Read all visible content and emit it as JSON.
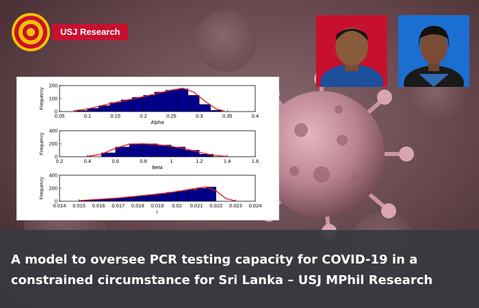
{
  "brand": {
    "badge_label": "USJ Research"
  },
  "headline": {
    "line1": "A model to oversee PCR testing capacity for COVID-19 in a",
    "line2": "constrained circumstance for Sri Lanka – USJ MPhil Research"
  },
  "colors": {
    "accent": "#c8102e",
    "bar": "#00008b",
    "fit_line": "#e02020",
    "banner": "#373a40"
  },
  "icons": [
    "university-seal-icon"
  ],
  "chart_data": [
    {
      "type": "bar",
      "xlabel": "Alpha",
      "ylabel": "Frequency",
      "xlim": [
        0.05,
        0.4
      ],
      "ylim": [
        0,
        200
      ],
      "xticks": [
        "0.05",
        "0.1",
        "0.15",
        "0.2",
        "0.25",
        "0.3",
        "0.35",
        "0.4"
      ],
      "yticks": [
        "0",
        "100",
        "200"
      ],
      "bins": [
        [
          0.08,
          0.1
        ],
        [
          0.1,
          0.12
        ],
        [
          0.12,
          0.14
        ],
        [
          0.14,
          0.16
        ],
        [
          0.16,
          0.18
        ],
        [
          0.18,
          0.2
        ],
        [
          0.2,
          0.22
        ],
        [
          0.22,
          0.24
        ],
        [
          0.24,
          0.26
        ],
        [
          0.26,
          0.28
        ],
        [
          0.28,
          0.3
        ],
        [
          0.3,
          0.32
        ],
        [
          0.32,
          0.34
        ]
      ],
      "values": [
        8,
        25,
        45,
        70,
        90,
        110,
        125,
        150,
        165,
        175,
        125,
        55,
        10
      ],
      "fit": [
        [
          0.075,
          5
        ],
        [
          0.1,
          20
        ],
        [
          0.15,
          70
        ],
        [
          0.2,
          115
        ],
        [
          0.25,
          165
        ],
        [
          0.27,
          180
        ],
        [
          0.29,
          150
        ],
        [
          0.31,
          80
        ],
        [
          0.33,
          20
        ],
        [
          0.345,
          5
        ]
      ]
    },
    {
      "type": "bar",
      "xlabel": "Beta",
      "ylabel": "Frequency",
      "xlim": [
        0.2,
        1.6
      ],
      "ylim": [
        0,
        400
      ],
      "xticks": [
        "0.2",
        "0.4",
        "0.6",
        "0.8",
        "1",
        "1.2",
        "1.4",
        "1.6"
      ],
      "yticks": [
        "0",
        "200",
        "400"
      ],
      "bins": [
        [
          0.5,
          0.6
        ],
        [
          0.6,
          0.7
        ],
        [
          0.7,
          0.8
        ],
        [
          0.8,
          0.9
        ],
        [
          0.9,
          1.0
        ],
        [
          1.0,
          1.1
        ],
        [
          1.1,
          1.2
        ],
        [
          1.2,
          1.3
        ]
      ],
      "values": [
        60,
        150,
        200,
        200,
        180,
        150,
        100,
        40
      ],
      "fit": [
        [
          0.4,
          5
        ],
        [
          0.5,
          40
        ],
        [
          0.6,
          130
        ],
        [
          0.7,
          195
        ],
        [
          0.8,
          200
        ],
        [
          0.9,
          185
        ],
        [
          1.0,
          160
        ],
        [
          1.1,
          120
        ],
        [
          1.2,
          70
        ],
        [
          1.3,
          20
        ],
        [
          1.4,
          5
        ]
      ]
    },
    {
      "type": "bar",
      "xlabel": "r",
      "ylabel": "Frequency",
      "xlim": [
        0.014,
        0.024
      ],
      "ylim": [
        0,
        400
      ],
      "xticks": [
        "0.014",
        "0.015",
        "0.016",
        "0.017",
        "0.018",
        "0.019",
        "0.02",
        "0.021",
        "0.022",
        "0.023",
        "0.024"
      ],
      "yticks": [
        "0",
        "200",
        "400"
      ],
      "bins": [
        [
          0.015,
          0.0155
        ],
        [
          0.0155,
          0.016
        ],
        [
          0.016,
          0.0165
        ],
        [
          0.0165,
          0.017
        ],
        [
          0.017,
          0.0175
        ],
        [
          0.0175,
          0.018
        ],
        [
          0.018,
          0.0185
        ],
        [
          0.0185,
          0.019
        ],
        [
          0.019,
          0.0195
        ],
        [
          0.0195,
          0.02
        ],
        [
          0.02,
          0.0205
        ],
        [
          0.0205,
          0.021
        ],
        [
          0.021,
          0.0215
        ],
        [
          0.0215,
          0.022
        ]
      ],
      "values": [
        10,
        20,
        30,
        40,
        55,
        70,
        85,
        100,
        120,
        140,
        160,
        180,
        200,
        220
      ],
      "fit": [
        [
          0.015,
          10
        ],
        [
          0.016,
          30
        ],
        [
          0.017,
          50
        ],
        [
          0.018,
          80
        ],
        [
          0.019,
          110
        ],
        [
          0.02,
          150
        ],
        [
          0.021,
          200
        ],
        [
          0.0215,
          220
        ],
        [
          0.022,
          160
        ],
        [
          0.0225,
          40
        ],
        [
          0.023,
          5
        ]
      ]
    }
  ]
}
